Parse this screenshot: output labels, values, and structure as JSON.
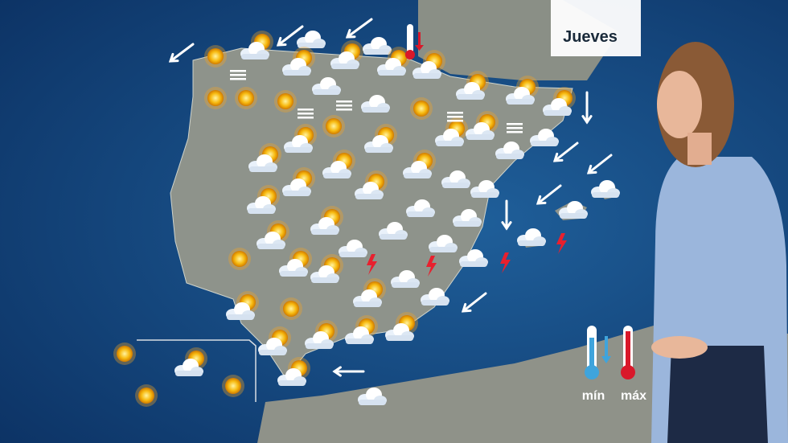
{
  "header": {
    "day": "Jueves"
  },
  "legend": {
    "min": "mín",
    "max": "máx"
  }
}
